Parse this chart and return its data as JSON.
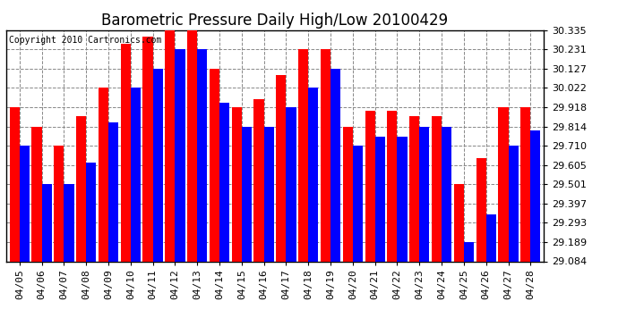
{
  "title": "Barometric Pressure Daily High/Low 20100429",
  "copyright": "Copyright 2010 Cartronics.com",
  "dates": [
    "04/05",
    "04/06",
    "04/07",
    "04/08",
    "04/09",
    "04/10",
    "04/11",
    "04/12",
    "04/13",
    "04/14",
    "04/15",
    "04/16",
    "04/17",
    "04/18",
    "04/19",
    "04/20",
    "04/21",
    "04/22",
    "04/23",
    "04/24",
    "04/25",
    "04/26",
    "04/27",
    "04/28"
  ],
  "highs": [
    29.918,
    29.814,
    29.71,
    29.87,
    30.022,
    30.26,
    30.3,
    30.335,
    30.335,
    30.127,
    29.918,
    29.96,
    30.09,
    30.231,
    30.231,
    29.814,
    29.9,
    29.9,
    29.87,
    29.87,
    29.501,
    29.64,
    29.918,
    29.918
  ],
  "lows": [
    29.71,
    29.501,
    29.501,
    29.62,
    29.835,
    30.022,
    30.127,
    30.231,
    30.231,
    29.94,
    29.814,
    29.814,
    29.918,
    30.022,
    30.127,
    29.71,
    29.76,
    29.76,
    29.814,
    29.814,
    29.189,
    29.34,
    29.71,
    29.79
  ],
  "high_color": "#FF0000",
  "low_color": "#0000FF",
  "bg_color": "#FFFFFF",
  "plot_bg_color": "#FFFFFF",
  "grid_color": "#888888",
  "yticks": [
    29.084,
    29.189,
    29.293,
    29.397,
    29.501,
    29.605,
    29.71,
    29.814,
    29.918,
    30.022,
    30.127,
    30.231,
    30.335
  ],
  "ymin": 29.084,
  "ymax": 30.335,
  "title_fontsize": 12,
  "copyright_fontsize": 7,
  "tick_fontsize": 8,
  "bar_width": 0.45
}
